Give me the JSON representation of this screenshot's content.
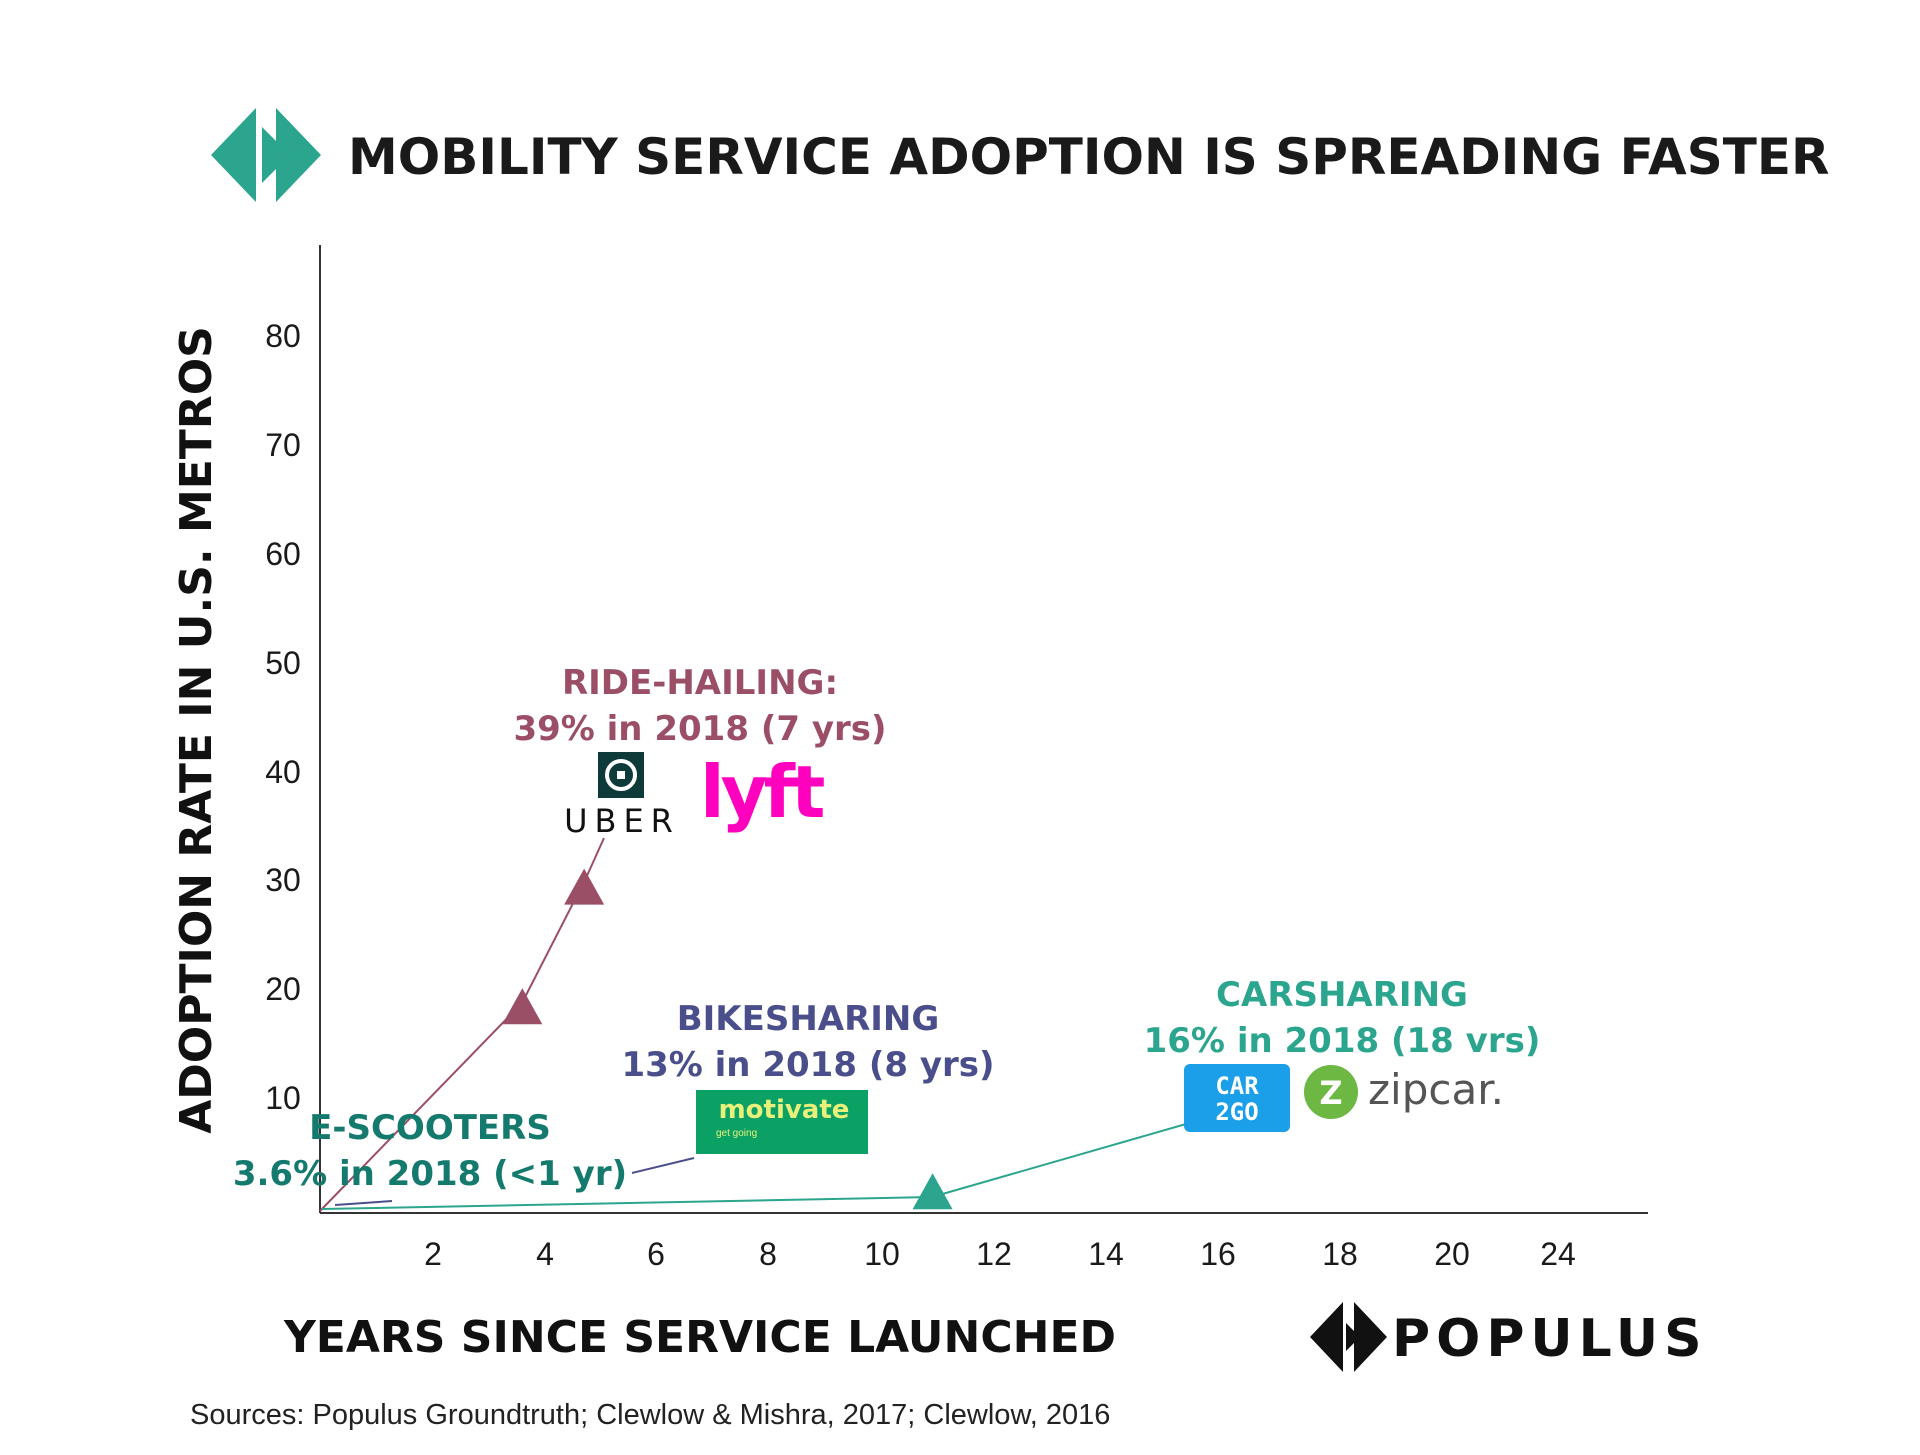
{
  "header": {
    "title": "MOBILITY SERVICE ADOPTION IS SPREADING FASTER",
    "logo_icon": "populus-chevron-icon",
    "logo_color": "#2ba58d"
  },
  "chart_data": {
    "type": "scatter",
    "title": "MOBILITY SERVICE ADOPTION IS SPREADING FASTER",
    "xlabel": "YEARS SINCE SERVICE LAUNCHED",
    "ylabel": "ADOPTION RATE IN U.S. METROS",
    "x_ticks": [
      "2",
      "4",
      "6",
      "8",
      "10",
      "12",
      "14",
      "16",
      "18",
      "20",
      "24"
    ],
    "y_ticks": [
      "10",
      "20",
      "30",
      "40",
      "50",
      "60",
      "70",
      "80"
    ],
    "ylim": [
      0,
      90
    ],
    "grid": false,
    "series": [
      {
        "key": "ridehailing",
        "color": "#9b4f67",
        "points": [
          {
            "x": 3.6,
            "y": 19
          },
          {
            "x": 4.7,
            "y": 30
          }
        ],
        "annotation": {
          "heading": "RIDE-HAILING:",
          "detail": "39% in 2018 (7 yrs)"
        },
        "logos": [
          {
            "name": "uber-logo",
            "text": "UBER"
          },
          {
            "name": "lyft-logo",
            "text": "lyft",
            "color": "#ff00bf"
          }
        ]
      },
      {
        "key": "bikesharing",
        "color": "#4a4f8c",
        "points": [],
        "annotation": {
          "heading": "BIKESHARING",
          "detail": "13% in 2018 (8 yrs)"
        },
        "logos": [
          {
            "name": "motivate-logo",
            "text": "motivate",
            "subtext": "get going",
            "color": "#0ba164"
          }
        ]
      },
      {
        "key": "carsharing",
        "color": "#2ba58d",
        "points": [
          {
            "x": 10.9,
            "y": 2
          }
        ],
        "annotation": {
          "heading": "CARSHARING",
          "detail": "16% in 2018 (18 vrs)"
        },
        "logos": [
          {
            "name": "car2go-logo",
            "text": "CAR 2GO",
            "color": "#1a9fe8"
          },
          {
            "name": "zipcar-logo",
            "text": "zipcar.",
            "color": "#6cb843"
          }
        ]
      },
      {
        "key": "escooters",
        "color": "#157a6e",
        "points": [],
        "annotation": {
          "heading": "E-SCOOTERS",
          "detail": "3.6% in 2018 (<1 yr)"
        }
      }
    ]
  },
  "footer": {
    "brand": "POPULUS",
    "brand_icon": "populus-chevron-icon",
    "sources": "Sources: Populus Groundtruth; Clewlow & Mishra, 2017; Clewlow, 2016"
  }
}
